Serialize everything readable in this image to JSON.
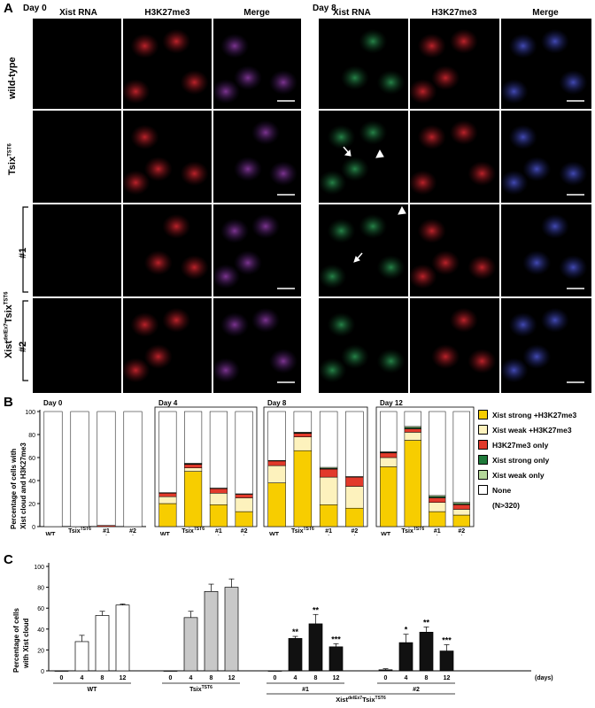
{
  "panelA": {
    "letter": "A",
    "day0_label": "Day 0",
    "day8_label": "Day 8",
    "columns": [
      "Xist RNA",
      "H3K27me3",
      "Merge"
    ],
    "rows": {
      "wildtype": "wild-type",
      "tsix_base": "Tsix",
      "tsix_sup": "TST6",
      "xist_base": "Xist",
      "xist_sup": "delEx7",
      "xist_tsix": "Tsix",
      "xist_tsix_sup": "TST6",
      "clone1": "#1",
      "clone2": "#2"
    }
  },
  "panelB": {
    "letter": "B",
    "ylabel_line1": "Percentage of cells with",
    "ylabel_line2": "Xist cloud and H3K27me3",
    "yticks": [
      "0",
      "20",
      "40",
      "60",
      "80",
      "100"
    ],
    "legend": [
      {
        "label": "Xist strong +H3K27me3",
        "color": "#f7cd00"
      },
      {
        "label": "Xist weak +H3K27me3",
        "color": "#fdf2bd"
      },
      {
        "label": "H3K27me3 only",
        "color": "#e23a2b"
      },
      {
        "label": "Xist strong only",
        "color": "#1f7a3a"
      },
      {
        "label": "Xist weak only",
        "color": "#b4d79a"
      },
      {
        "label": "None",
        "color": "#ffffff"
      }
    ],
    "legend_note": "(N>320)"
  },
  "panelC": {
    "letter": "C",
    "ylabel_line1": "Percentage of cells",
    "ylabel_line2": "with Xist cloud",
    "yticks": [
      "0",
      "20",
      "40",
      "60",
      "80",
      "100"
    ],
    "days_suffix": "(days)"
  },
  "chart_data": [
    {
      "type": "bar",
      "title": "",
      "ylabel": "Percentage of cells with Xist cloud and H3K27me3",
      "ylim": [
        0,
        100
      ],
      "stack_order": [
        "Xist strong +H3K27me3",
        "Xist weak +H3K27me3",
        "H3K27me3 only",
        "Xist strong only",
        "Xist weak only",
        "None"
      ],
      "groups": [
        {
          "day": "Day 0",
          "bars": [
            {
              "label": "WT",
              "values": [
                0,
                0,
                0,
                0,
                0,
                100
              ]
            },
            {
              "label": "TsixTST6",
              "values": [
                0,
                0,
                0,
                0,
                0,
                100
              ]
            },
            {
              "label": "#1",
              "values": [
                0,
                0,
                1,
                0,
                0,
                99
              ]
            },
            {
              "label": "#2",
              "values": [
                0,
                0,
                0,
                0,
                0,
                100
              ]
            }
          ]
        },
        {
          "day": "Day 4",
          "bars": [
            {
              "label": "WT",
              "values": [
                20,
                6,
                3,
                0,
                0.5,
                70.5
              ]
            },
            {
              "label": "TsixTST6",
              "values": [
                48,
                3,
                3,
                0.5,
                0.5,
                45
              ]
            },
            {
              "label": "#1",
              "values": [
                19,
                10,
                4,
                0,
                0.5,
                66.5
              ]
            },
            {
              "label": "#2",
              "values": [
                13,
                12,
                3,
                0,
                0.5,
                71.5
              ]
            }
          ]
        },
        {
          "day": "Day 8",
          "bars": [
            {
              "label": "WT",
              "values": [
                38,
                15,
                4,
                0,
                0.5,
                42.5
              ]
            },
            {
              "label": "TsixTST6",
              "values": [
                66,
                12,
                3,
                0.5,
                0.5,
                18
              ]
            },
            {
              "label": "#1",
              "values": [
                19,
                24,
                7,
                0.5,
                1,
                48.5
              ]
            },
            {
              "label": "#2",
              "values": [
                16,
                19,
                8,
                0,
                0.5,
                56.5
              ]
            }
          ]
        },
        {
          "day": "Day 12",
          "bars": [
            {
              "label": "WT",
              "values": [
                52,
                8,
                4,
                0.5,
                0.5,
                35
              ]
            },
            {
              "label": "TsixTST6",
              "values": [
                75,
                7,
                3,
                1,
                1,
                13
              ]
            },
            {
              "label": "#1",
              "values": [
                13,
                8,
                4,
                1,
                1,
                73
              ]
            },
            {
              "label": "#2",
              "values": [
                10,
                5,
                4,
                1,
                1,
                79
              ]
            }
          ]
        }
      ],
      "group_labels": {
        "WT": "WT",
        "tsix": "Tsix",
        "tsix_sup": "TST6",
        "xist": "Xist",
        "xist_sup": "delEx7",
        "xist_tsix": "Tsix",
        "xist_tsix_sup": "TST6"
      }
    },
    {
      "type": "bar",
      "title": "",
      "ylabel": "Percentage of cells with Xist cloud",
      "xlabel": "(days)",
      "ylim": [
        0,
        100
      ],
      "series": [
        {
          "group": "WT",
          "color": "#ffffff",
          "days": [
            "0",
            "4",
            "8",
            "12"
          ],
          "values": [
            0,
            28,
            53,
            63
          ],
          "errors": [
            0,
            6,
            4,
            1
          ],
          "sig": [
            "",
            "",
            "",
            ""
          ]
        },
        {
          "group": "TsixTST6",
          "color": "#c8c8c8",
          "days": [
            "0",
            "4",
            "8",
            "12"
          ],
          "values": [
            0,
            51,
            76,
            80
          ],
          "errors": [
            0,
            6,
            7,
            8
          ],
          "sig": [
            "",
            "",
            "",
            ""
          ]
        },
        {
          "group": "#1",
          "color": "#111111",
          "days": [
            "0",
            "4",
            "8",
            "12"
          ],
          "values": [
            0,
            31,
            45,
            23
          ],
          "errors": [
            0,
            2,
            9,
            3
          ],
          "sig": [
            "",
            "**",
            "**",
            "***"
          ]
        },
        {
          "group": "#2",
          "color": "#111111",
          "days": [
            "0",
            "4",
            "8",
            "12"
          ],
          "values": [
            1,
            27,
            37,
            19
          ],
          "errors": [
            1,
            8,
            5,
            6
          ],
          "sig": [
            "",
            "*",
            "**",
            "***"
          ]
        }
      ],
      "group_labels": {
        "WT": "WT",
        "tsix": "Tsix",
        "tsix_sup": "TST6",
        "xist": "Xist",
        "xist_sup": "delEx7",
        "xist_tsix": "Tsix",
        "xist_tsix_sup": "TST6"
      }
    }
  ]
}
